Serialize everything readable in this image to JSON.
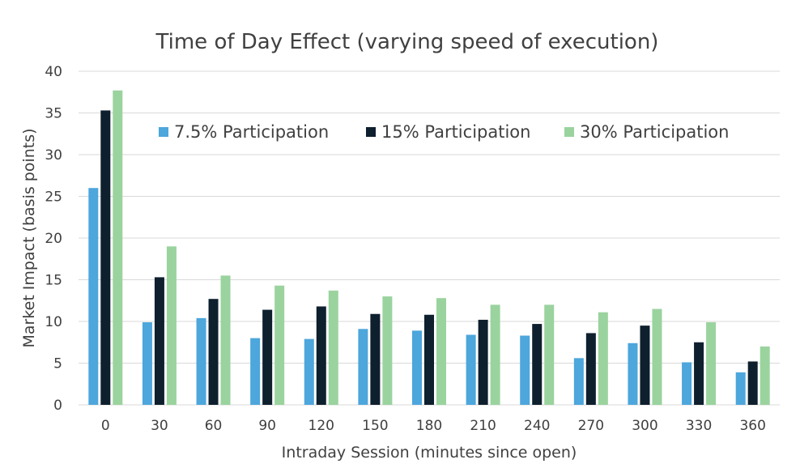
{
  "chart_data": {
    "type": "bar",
    "title": "Time of Day Effect (varying speed of execution)",
    "xlabel": "Intraday Session (minutes since open)",
    "ylabel": "Market Impact (basis points)",
    "ylim": [
      0,
      40
    ],
    "yticks": [
      0,
      5,
      10,
      15,
      20,
      25,
      30,
      35,
      40
    ],
    "grid": true,
    "legend_position": "top",
    "categories": [
      "0",
      "30",
      "60",
      "90",
      "120",
      "150",
      "180",
      "210",
      "240",
      "270",
      "300",
      "330",
      "360"
    ],
    "series": [
      {
        "name": "7.5% Participation",
        "color": "#4da6dc",
        "values": [
          26.0,
          9.9,
          10.4,
          8.0,
          7.9,
          9.1,
          8.9,
          8.4,
          8.3,
          5.6,
          7.4,
          5.1,
          3.9
        ]
      },
      {
        "name": "15% Participation",
        "color": "#0e1f2e",
        "values": [
          35.3,
          15.3,
          12.7,
          11.4,
          11.8,
          10.9,
          10.8,
          10.2,
          9.7,
          8.6,
          9.5,
          7.5,
          5.2
        ]
      },
      {
        "name": "30% Participation",
        "color": "#9ad39e",
        "values": [
          37.7,
          19.0,
          15.5,
          14.3,
          13.7,
          13.0,
          12.8,
          12.0,
          12.0,
          11.1,
          11.5,
          9.9,
          7.0
        ]
      }
    ]
  }
}
